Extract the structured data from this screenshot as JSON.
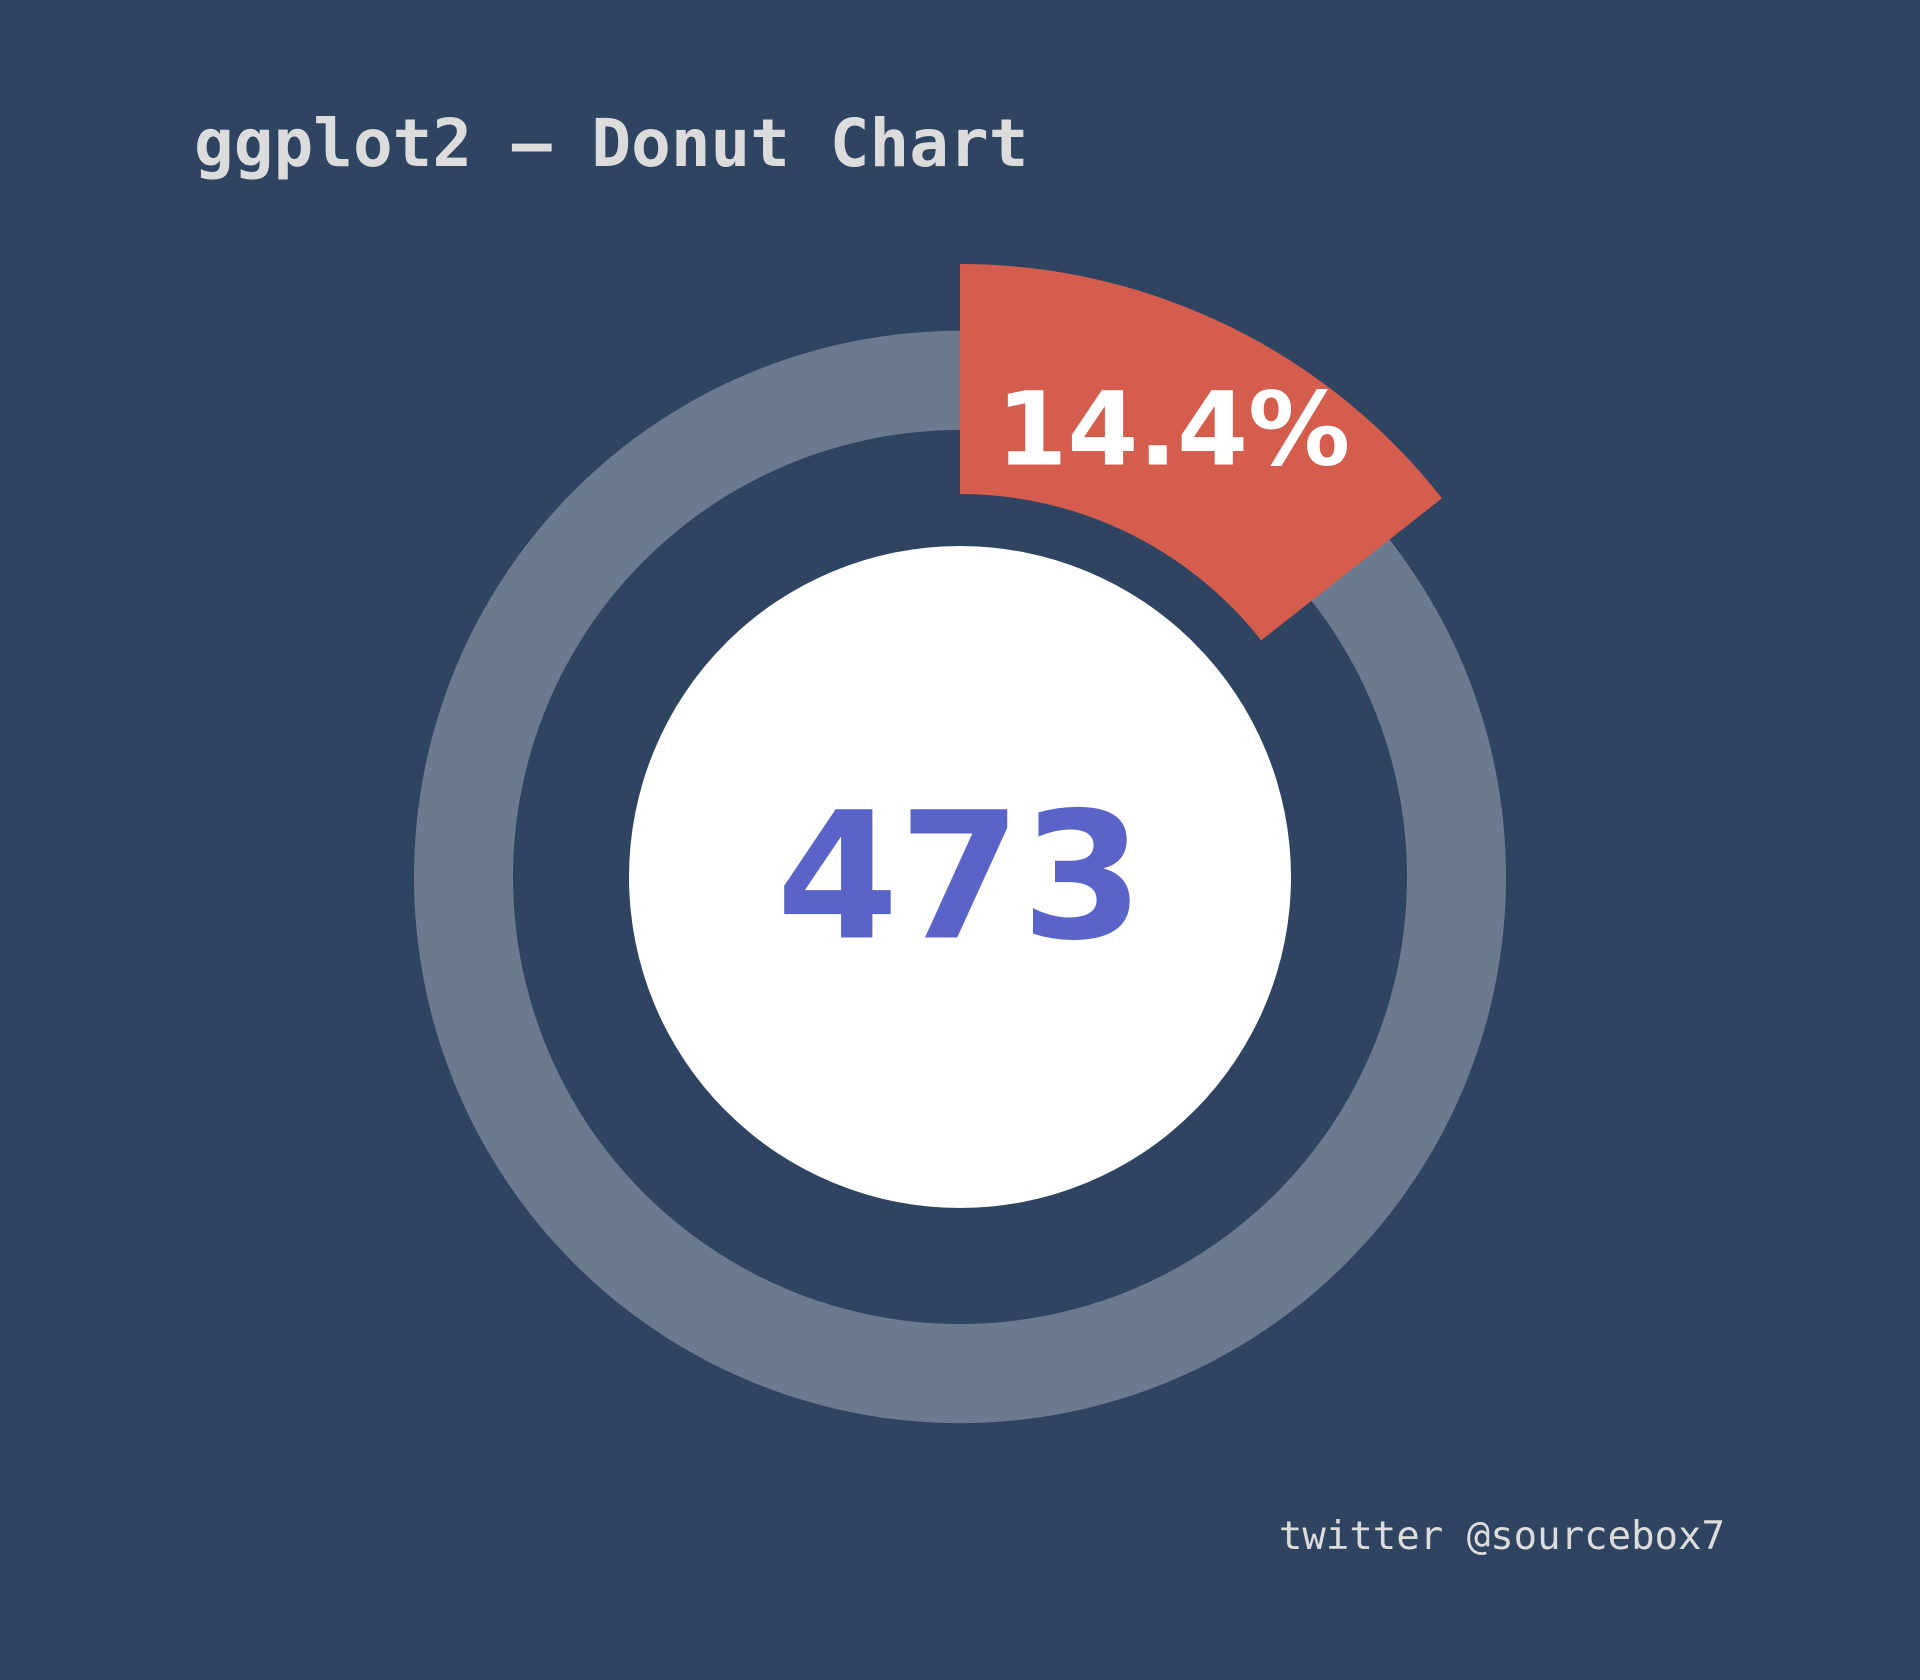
{
  "title": "ggplot2 – Donut Chart",
  "caption": "twitter @sourcebox7",
  "chart_data": {
    "type": "pie",
    "variant": "donut",
    "total": 473,
    "highlight_percent": 14.4,
    "highlight_label": "14.4%",
    "center_label": "473",
    "start_position": "12 o'clock",
    "direction": "clockwise"
  },
  "colors": {
    "background": "#2f4461",
    "ring": "#6b7a8f",
    "highlight": "#d45d4e",
    "center_fill": "#ffffff",
    "center_text": "#5a64c8",
    "percent_text": "#ffffff",
    "title_text": "#dcdcdc"
  }
}
